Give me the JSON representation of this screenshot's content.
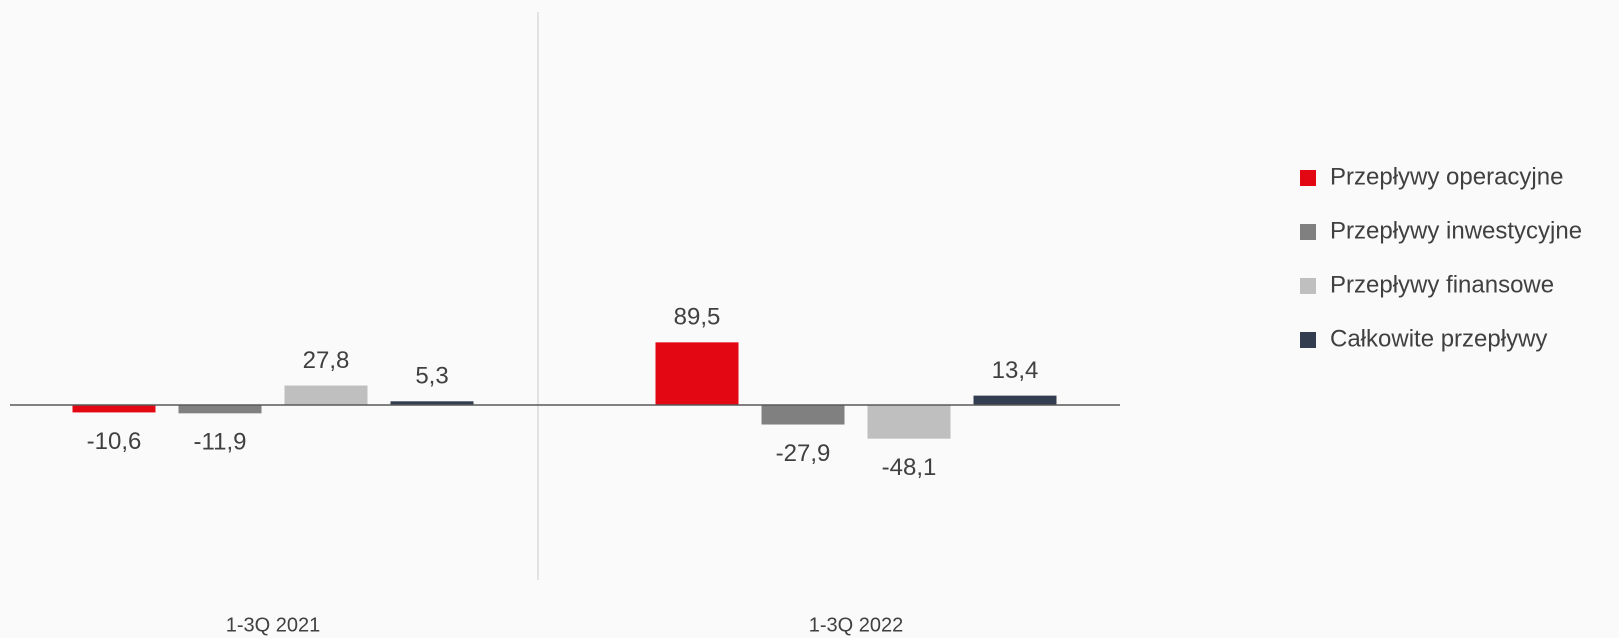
{
  "chart_data": {
    "type": "bar",
    "categories": [
      "1-3Q 2021",
      "1-3Q 2022"
    ],
    "series": [
      {
        "name": "Przepływy operacyjne",
        "color": "#e30613",
        "values": [
          -10.6,
          89.5
        ],
        "value_labels": [
          "-10,6",
          "89,5"
        ]
      },
      {
        "name": "Przepływy inwestycyjne",
        "color": "#808080",
        "values": [
          -11.9,
          -27.9
        ],
        "value_labels": [
          "-11,9",
          "-27,9"
        ]
      },
      {
        "name": "Przepływy finansowe",
        "color": "#bfbfbf",
        "values": [
          27.8,
          -48.1
        ],
        "value_labels": [
          "27,8",
          "-48,1"
        ]
      },
      {
        "name": "Całkowite przepływy",
        "color": "#323e4f",
        "values": [
          5.3,
          13.4
        ],
        "value_labels": [
          "5,3",
          "13,4"
        ]
      }
    ],
    "legend": "right"
  }
}
